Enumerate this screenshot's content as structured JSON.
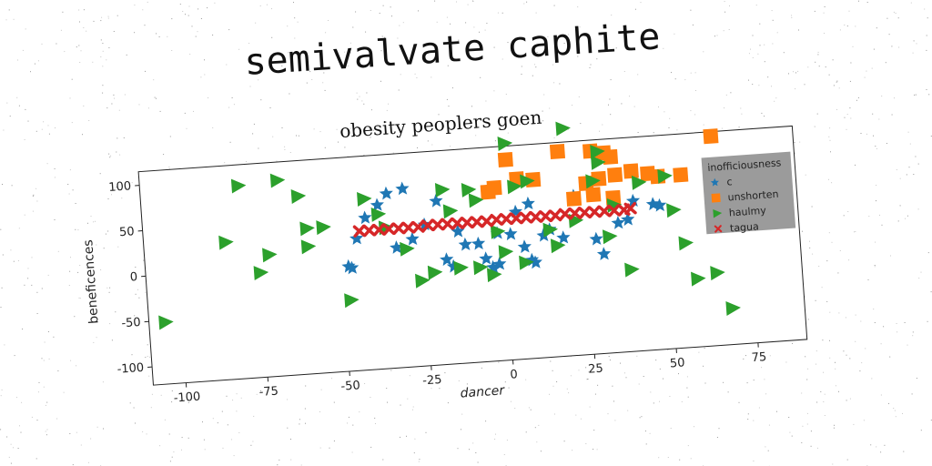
{
  "page_title": "semivalvate caphite",
  "chart_data": {
    "type": "scatter",
    "title": "obesity peoplers goen",
    "xlabel": "dancer",
    "ylabel": "beneficences",
    "xlim": [
      -110,
      90
    ],
    "ylim": [
      -120,
      115
    ],
    "xticks": [
      -100,
      -75,
      -50,
      -25,
      0,
      25,
      50,
      75
    ],
    "yticks": [
      -100,
      -50,
      0,
      50,
      100
    ],
    "grid": false,
    "legend": {
      "title": "inofficiousness",
      "placement": "right"
    },
    "series": [
      {
        "name": "c",
        "marker": "star",
        "color": "#1f77b4",
        "points": [
          [
            -42,
            47
          ],
          [
            -35,
            72
          ],
          [
            -30,
            76
          ],
          [
            -38,
            60
          ],
          [
            -45,
            25
          ],
          [
            -48,
            -5
          ],
          [
            -47,
            -7
          ],
          [
            -33,
            12
          ],
          [
            -28,
            20
          ],
          [
            -18,
            -5
          ],
          [
            -16,
            -13
          ],
          [
            -12,
            10
          ],
          [
            -8,
            10
          ],
          [
            -6,
            -7
          ],
          [
            -4,
            -17
          ],
          [
            -2,
            -14
          ],
          [
            -14,
            25
          ],
          [
            -20,
            60
          ],
          [
            -2,
            20
          ],
          [
            2,
            18
          ],
          [
            6,
            3
          ],
          [
            8,
            -12
          ],
          [
            9,
            -15
          ],
          [
            12,
            14
          ],
          [
            14,
            20
          ],
          [
            18,
            10
          ],
          [
            28,
            6
          ],
          [
            30,
            -11
          ],
          [
            35,
            22
          ],
          [
            38,
            25
          ],
          [
            40,
            45
          ],
          [
            46,
            40
          ],
          [
            48,
            38
          ],
          [
            8,
            50
          ],
          [
            22,
            55
          ],
          [
            -24,
            35
          ],
          [
            4,
            42
          ]
        ]
      },
      {
        "name": "unshorten",
        "marker": "square",
        "color": "#ff7f0e",
        "points": [
          [
            2,
            100
          ],
          [
            18,
            105
          ],
          [
            28,
            103
          ],
          [
            32,
            100
          ],
          [
            34,
            95
          ],
          [
            5,
            78
          ],
          [
            10,
            76
          ],
          [
            -2,
            70
          ],
          [
            -4,
            66
          ],
          [
            26,
            68
          ],
          [
            30,
            72
          ],
          [
            35,
            75
          ],
          [
            40,
            78
          ],
          [
            45,
            74
          ],
          [
            48,
            70
          ],
          [
            55,
            70
          ],
          [
            65,
            110
          ],
          [
            22,
            52
          ],
          [
            28,
            55
          ],
          [
            34,
            50
          ]
        ]
      },
      {
        "name": "haulmy",
        "marker": "triangle",
        "color": "#2ca02c",
        "points": [
          [
            -105,
            -52
          ],
          [
            -80,
            92
          ],
          [
            -68,
            95
          ],
          [
            -62,
            76
          ],
          [
            -85,
            31
          ],
          [
            -72,
            14
          ],
          [
            -75,
            -5
          ],
          [
            -60,
            40
          ],
          [
            -55,
            40
          ],
          [
            -60,
            20
          ],
          [
            -48,
            -42
          ],
          [
            -42,
            68
          ],
          [
            -38,
            50
          ],
          [
            -36,
            35
          ],
          [
            -30,
            10
          ],
          [
            -26,
            -26
          ],
          [
            -18,
            72
          ],
          [
            -16,
            48
          ],
          [
            -10,
            70
          ],
          [
            -8,
            58
          ],
          [
            -2,
            22
          ],
          [
            0,
            -1
          ],
          [
            2,
            118
          ],
          [
            4,
            70
          ],
          [
            6,
            -14
          ],
          [
            8,
            75
          ],
          [
            14,
            20
          ],
          [
            16,
            2
          ],
          [
            20,
            130
          ],
          [
            22,
            28
          ],
          [
            28,
            70
          ],
          [
            30,
            102
          ],
          [
            32,
            8
          ],
          [
            34,
            42
          ],
          [
            38,
            -30
          ],
          [
            42,
            65
          ],
          [
            50,
            70
          ],
          [
            52,
            32
          ],
          [
            55,
            -5
          ],
          [
            58,
            -45
          ],
          [
            64,
            -40
          ],
          [
            68,
            -80
          ],
          [
            -4,
            -25
          ],
          [
            -14,
            -15
          ],
          [
            -22,
            -18
          ],
          [
            -8,
            -16
          ],
          [
            30,
            90
          ]
        ]
      },
      {
        "name": "tagua",
        "marker": "x",
        "color": "#d62728",
        "points": [
          [
            -44,
            33
          ],
          [
            -41,
            33
          ],
          [
            -38,
            33
          ],
          [
            -35,
            33
          ],
          [
            -32,
            33
          ],
          [
            -29,
            33
          ],
          [
            -26,
            33
          ],
          [
            -23,
            34
          ],
          [
            -20,
            34
          ],
          [
            -17,
            34
          ],
          [
            -14,
            34
          ],
          [
            -11,
            34
          ],
          [
            -8,
            34
          ],
          [
            -5,
            34
          ],
          [
            -2,
            35
          ],
          [
            1,
            35
          ],
          [
            4,
            35
          ],
          [
            7,
            35
          ],
          [
            10,
            35
          ],
          [
            13,
            35
          ],
          [
            16,
            35
          ],
          [
            19,
            36
          ],
          [
            22,
            36
          ],
          [
            25,
            36
          ],
          [
            28,
            36
          ],
          [
            31,
            36
          ],
          [
            34,
            36
          ],
          [
            37,
            36
          ],
          [
            39,
            37
          ]
        ]
      }
    ]
  }
}
